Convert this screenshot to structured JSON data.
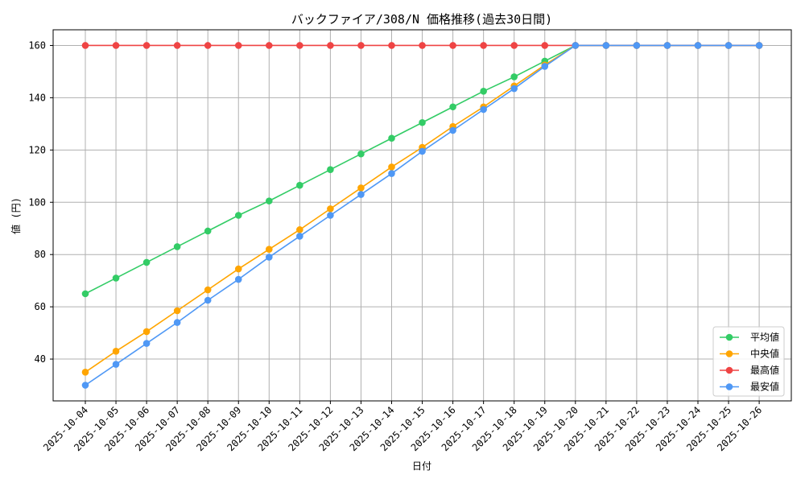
{
  "chart_data": {
    "type": "line",
    "title": "バックファイア/308/N 価格推移(過去30日間)",
    "xlabel": "日付",
    "ylabel": "値 (円)",
    "ylim": [
      24,
      166
    ],
    "yticks": [
      40,
      60,
      80,
      100,
      120,
      140,
      160
    ],
    "grid": true,
    "legend_position": "bottom-right",
    "categories": [
      "2025-10-04",
      "2025-10-05",
      "2025-10-06",
      "2025-10-07",
      "2025-10-08",
      "2025-10-09",
      "2025-10-10",
      "2025-10-11",
      "2025-10-12",
      "2025-10-13",
      "2025-10-14",
      "2025-10-15",
      "2025-10-16",
      "2025-10-17",
      "2025-10-18",
      "2025-10-19",
      "2025-10-20",
      "2025-10-21",
      "2025-10-22",
      "2025-10-23",
      "2025-10-24",
      "2025-10-25",
      "2025-10-26"
    ],
    "series": [
      {
        "name": "平均値",
        "color": "#33cc66",
        "values": [
          65,
          71,
          77,
          83,
          89,
          95,
          100.5,
          106.5,
          112.5,
          118.5,
          124.5,
          130.5,
          136.5,
          142.5,
          148,
          154,
          160,
          160,
          160,
          160,
          160,
          160,
          160
        ]
      },
      {
        "name": "中央値",
        "color": "#ffa500",
        "values": [
          35,
          43,
          50.5,
          58.5,
          66.5,
          74.5,
          82,
          89.5,
          97.5,
          105.5,
          113.5,
          121,
          129,
          136.5,
          144.5,
          152.5,
          160,
          160,
          160,
          160,
          160,
          160,
          160
        ]
      },
      {
        "name": "最高値",
        "color": "#ef4444",
        "values": [
          160,
          160,
          160,
          160,
          160,
          160,
          160,
          160,
          160,
          160,
          160,
          160,
          160,
          160,
          160,
          160,
          160,
          160,
          160,
          160,
          160,
          160,
          160
        ]
      },
      {
        "name": "最安値",
        "color": "#4f98f5",
        "values": [
          30,
          38,
          46,
          54,
          62.5,
          70.5,
          79,
          87,
          95,
          103,
          111,
          119.5,
          127.5,
          135.5,
          143.5,
          152,
          160,
          160,
          160,
          160,
          160,
          160,
          160
        ]
      }
    ]
  }
}
